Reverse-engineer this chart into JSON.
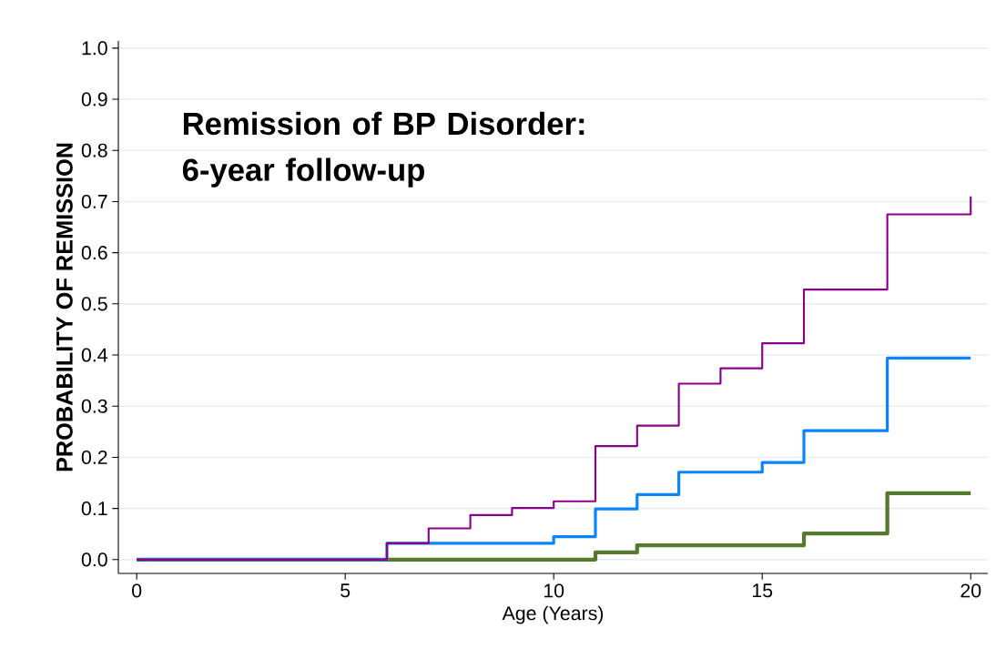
{
  "chart_data": {
    "type": "step",
    "title": "Remission of BP Disorder: 6-year follow-up",
    "xlabel": "Age (Years)",
    "ylabel": "PROBABILITY OF REMISSION",
    "xlim": [
      -0.44,
      20.41
    ],
    "ylim": [
      -0.027,
      1.014
    ],
    "xticks": [
      0,
      5,
      10,
      15,
      20
    ],
    "yticks": [
      {
        "value": 0,
        "label": "0.0"
      },
      {
        "value": 0.1,
        "label": "0.1"
      },
      {
        "value": 0.2,
        "label": "0.2"
      },
      {
        "value": 0.3,
        "label": "0.3"
      },
      {
        "value": 0.4,
        "label": "0.4"
      },
      {
        "value": 0.5,
        "label": "0.5"
      },
      {
        "value": 0.6,
        "label": "0.6"
      },
      {
        "value": 0.7,
        "label": "0.7"
      },
      {
        "value": 0.8,
        "label": "0.8"
      },
      {
        "value": 0.9,
        "label": "0.9"
      },
      {
        "value": 1.0,
        "label": "1.0"
      }
    ],
    "grid": "y",
    "marker": "none",
    "line_style": "solid",
    "series": [
      {
        "color": "#557a2e",
        "x": [
          0,
          11,
          12,
          16,
          18,
          20
        ],
        "values": [
          0,
          0.014,
          0.028,
          0.051,
          0.13,
          0.13
        ]
      },
      {
        "color": "#0a84ff",
        "x": [
          0,
          6,
          10,
          11,
          12,
          13,
          15,
          16,
          18,
          20
        ],
        "values": [
          0,
          0.032,
          0.045,
          0.099,
          0.127,
          0.171,
          0.19,
          0.252,
          0.394,
          0.394
        ]
      },
      {
        "color": "#8b008b",
        "x": [
          0,
          6,
          7,
          8,
          9,
          10,
          11,
          12,
          13,
          14,
          15,
          16,
          18,
          20
        ],
        "values": [
          0,
          0.032,
          0.061,
          0.087,
          0.101,
          0.114,
          0.222,
          0.262,
          0.344,
          0.374,
          0.423,
          0.528,
          0.675,
          0.71
        ]
      }
    ]
  }
}
